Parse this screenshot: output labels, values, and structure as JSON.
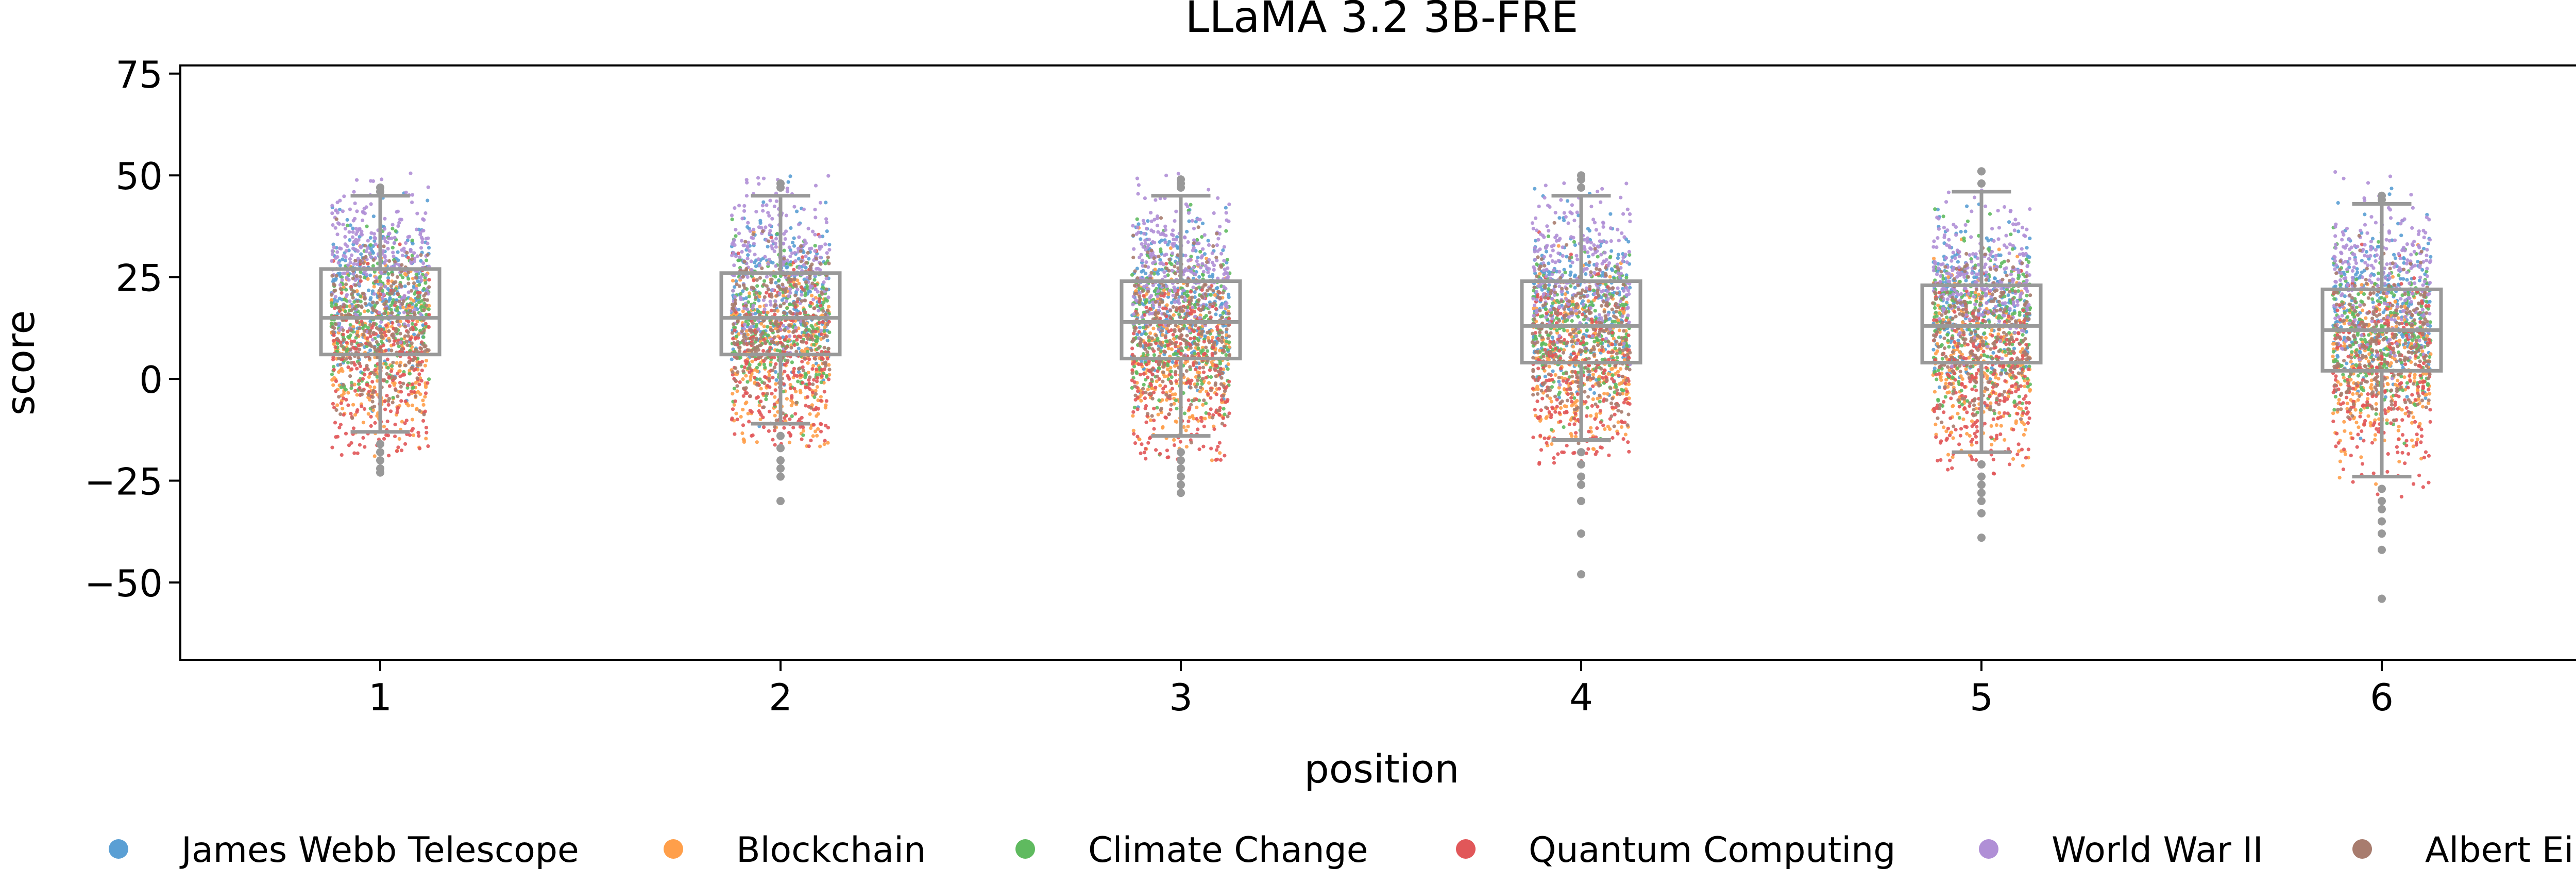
{
  "chart_data": {
    "type": "scatter",
    "title": "LLaMA 3.2 3B-FRE",
    "xlabel": "position",
    "ylabel": "score",
    "categories": [
      "1",
      "2",
      "3",
      "4",
      "5",
      "6"
    ],
    "yticks": [
      -50,
      -25,
      0,
      25,
      50,
      75
    ],
    "ytick_labels": [
      "−50",
      "−25",
      "0",
      "25",
      "50",
      "75"
    ],
    "ylim": [
      -69,
      77
    ],
    "grid": false,
    "legend_position": "bottom",
    "series": [
      {
        "name": "James Webb Telescope",
        "color": "#5a9fd4",
        "medians": [
          21,
          20,
          19,
          18,
          18,
          17
        ],
        "spread": 10
      },
      {
        "name": "Blockchain",
        "color": "#ff9f4a",
        "medians": [
          6,
          6,
          5,
          5,
          4,
          3
        ],
        "spread": 11
      },
      {
        "name": "Climate Change",
        "color": "#5fba5f",
        "medians": [
          15,
          14,
          13,
          13,
          13,
          12
        ],
        "spread": 10
      },
      {
        "name": "Quantum Computing",
        "color": "#e15759",
        "medians": [
          3,
          3,
          2,
          1,
          1,
          0
        ],
        "spread": 12
      },
      {
        "name": "World War II",
        "color": "#b08fd6",
        "medians": [
          30,
          29,
          28,
          27,
          26,
          25
        ],
        "spread": 9
      },
      {
        "name": "Albert Einstein",
        "color": "#a87c6e",
        "medians": [
          13,
          13,
          12,
          11,
          11,
          10
        ],
        "spread": 10
      }
    ],
    "boxplot": {
      "color": "#999999",
      "q1": [
        6,
        6,
        5,
        4,
        4,
        2
      ],
      "median": [
        15,
        15,
        14,
        13,
        13,
        12
      ],
      "q3": [
        27,
        26,
        24,
        24,
        23,
        22
      ],
      "whisker_low": [
        -13,
        -11,
        -14,
        -15,
        -18,
        -24
      ],
      "whisker_high": [
        45,
        45,
        45,
        45,
        46,
        43
      ],
      "outliers": [
        [
          -16,
          -18,
          -20,
          -22,
          -23,
          47,
          46
        ],
        [
          -14,
          -17,
          -20,
          -22,
          -24,
          -30,
          47,
          48
        ],
        [
          -18,
          -20,
          -22,
          -24,
          -26,
          -28,
          47,
          48,
          49
        ],
        [
          -18,
          -21,
          -24,
          -26,
          -30,
          -38,
          -48,
          47,
          49,
          50
        ],
        [
          -21,
          -24,
          -26,
          -28,
          -30,
          -33,
          -39,
          48,
          51,
          51
        ],
        [
          -27,
          -30,
          -32,
          -35,
          -38,
          -42,
          -54,
          45,
          44
        ]
      ]
    }
  }
}
